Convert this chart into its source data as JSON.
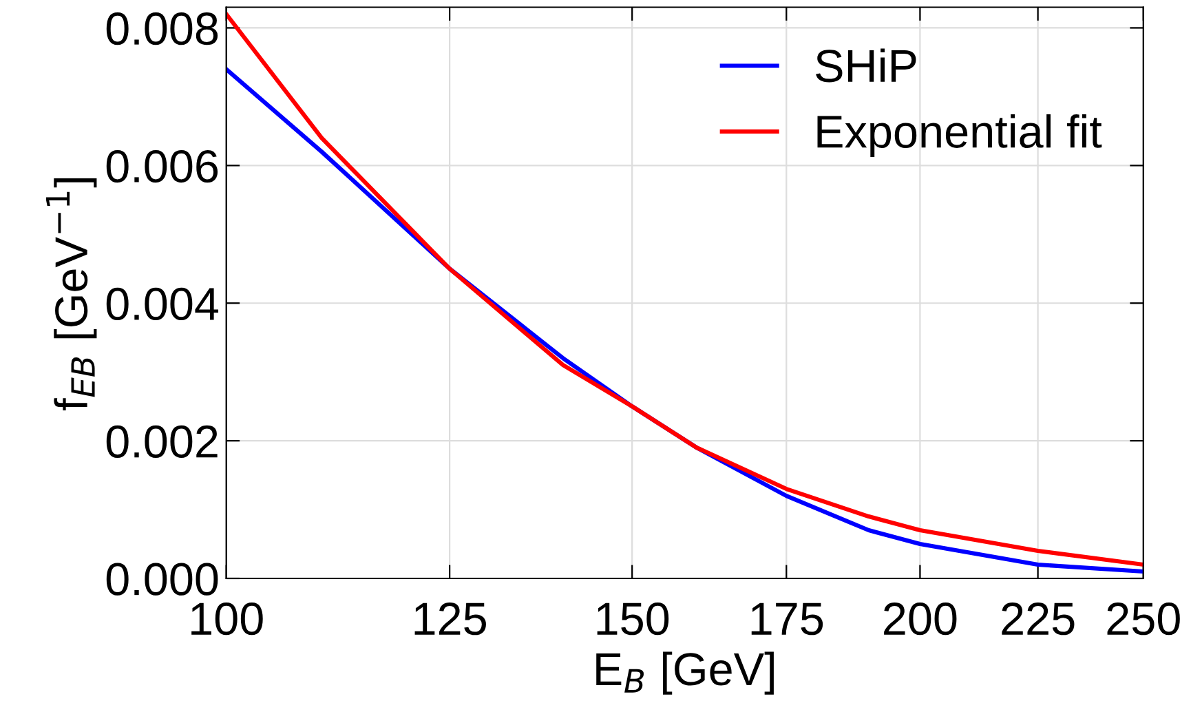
{
  "chart_data": {
    "type": "line",
    "xlabel": "E$_{B}$ [GeV]",
    "ylabel": "f$_{EB}$ [GeV$^{−1}$]",
    "x": [
      100,
      110,
      125,
      140,
      150,
      160,
      175,
      190,
      200,
      225,
      250
    ],
    "series": [
      {
        "name": "SHiP",
        "color": "#0000ff",
        "values": [
          0.0074,
          0.0062,
          0.0045,
          0.0032,
          0.0025,
          0.0019,
          0.0012,
          0.0007,
          0.0005,
          0.0002,
          0.0001
        ]
      },
      {
        "name": "Exponential fit",
        "color": "#ff0000",
        "values": [
          0.0082,
          0.0064,
          0.0045,
          0.0031,
          0.0025,
          0.0019,
          0.0013,
          0.0009,
          0.0007,
          0.0004,
          0.0002
        ]
      }
    ],
    "log": "x",
    "xlim": [
      100,
      250
    ],
    "xticks": [
      100,
      125,
      150,
      175,
      200,
      225,
      250
    ],
    "ylim": [
      0,
      0.0083
    ],
    "yticks": [
      {
        "value": 0,
        "label": "0.000"
      },
      {
        "value": 0.002,
        "label": "0.002"
      },
      {
        "value": 0.004,
        "label": "0.004"
      },
      {
        "value": 0.006,
        "label": "0.006"
      },
      {
        "value": 0.008,
        "label": "0.008"
      }
    ],
    "grid": true,
    "legend": "top right",
    "line_style": "solid",
    "marker": "none"
  }
}
